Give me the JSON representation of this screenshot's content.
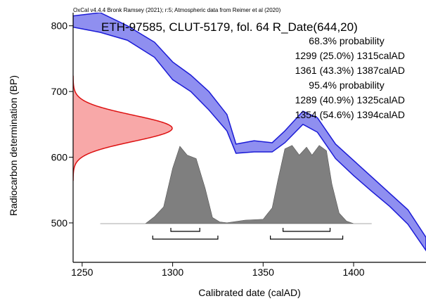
{
  "chart_data": {
    "type": "area",
    "header": "OxCal v4.4.4 Bronk Ramsey (2021); r:5; Atmospheric data from Reimer et al (2020)",
    "title": "ETH-97585, CLUT-5179, fol. 64 R_Date(644,20)",
    "xlabel": "Calibrated date (calAD)",
    "ylabel": "Radiocarbon determination (BP)",
    "xlim": [
      1245,
      1440
    ],
    "ylim": [
      440,
      820
    ],
    "xticks": [
      "1250",
      "1300",
      "1350",
      "1400"
    ],
    "yticks": [
      "500",
      "600",
      "700",
      "800"
    ],
    "probability_text": [
      {
        "label": "68.3% probability"
      },
      {
        "label": "1299 (25.0%) 1315calAD"
      },
      {
        "label": "1361 (43.3%) 1387calAD"
      },
      {
        "label": "95.4% probability"
      },
      {
        "label": "1289 (40.9%) 1325calAD"
      },
      {
        "label": "1354 (54.6%) 1394calAD"
      }
    ],
    "ranges_68": [
      [
        1299,
        1315
      ],
      [
        1361,
        1387
      ]
    ],
    "ranges_95": [
      [
        1289,
        1325
      ],
      [
        1354,
        1394
      ]
    ],
    "radiocarbon": {
      "mean": 644,
      "sd": 20
    },
    "calibration_curve": {
      "x": [
        1245,
        1260,
        1275,
        1290,
        1300,
        1310,
        1320,
        1330,
        1335,
        1345,
        1355,
        1362,
        1372,
        1380,
        1390,
        1400,
        1410,
        1420,
        1430,
        1440
      ],
      "upper": [
        815,
        820,
        800,
        775,
        745,
        725,
        700,
        665,
        620,
        625,
        622,
        640,
        670,
        660,
        620,
        595,
        570,
        545,
        520,
        478
      ],
      "lower": [
        798,
        790,
        778,
        752,
        718,
        700,
        672,
        640,
        606,
        608,
        608,
        622,
        650,
        638,
        598,
        572,
        548,
        525,
        498,
        458
      ]
    },
    "posterior": {
      "x": [
        1260,
        1285,
        1290,
        1295,
        1300,
        1304,
        1308,
        1313,
        1318,
        1322,
        1326,
        1330,
        1340,
        1350,
        1355,
        1358,
        1362,
        1366,
        1370,
        1374,
        1377,
        1381,
        1385,
        1388,
        1392,
        1396,
        1400,
        1410
      ],
      "y": [
        0,
        0,
        0.08,
        0.19,
        0.63,
        0.88,
        0.78,
        0.74,
        0.4,
        0.07,
        0.02,
        0.01,
        0.04,
        0.05,
        0.18,
        0.48,
        0.85,
        0.89,
        0.78,
        0.87,
        0.78,
        0.89,
        0.83,
        0.45,
        0.12,
        0.03,
        0,
        0
      ]
    },
    "colors": {
      "curve_fill": "#8f8ff0",
      "curve_stroke": "#1b1bd6",
      "posterior_fill": "#7f7f7f",
      "prior_fill": "#f8a8a8",
      "prior_stroke": "#dd1111"
    }
  }
}
